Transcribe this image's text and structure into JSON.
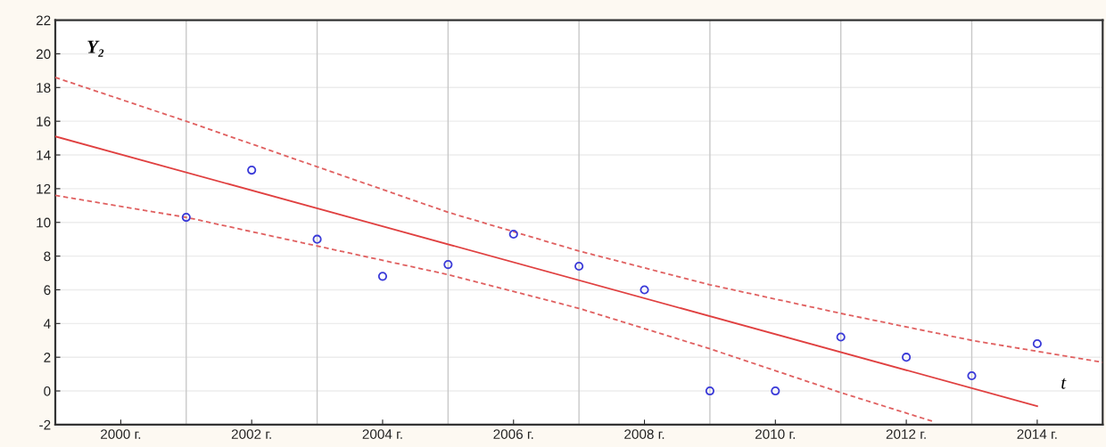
{
  "chart_data": {
    "type": "scatter",
    "xlabel": "t",
    "ylabel": "Y₂",
    "xlim": [
      1999,
      2015
    ],
    "ylim": [
      -2,
      22
    ],
    "xticks": [
      {
        "value": 2000,
        "label": "2000 г."
      },
      {
        "value": 2002,
        "label": "2002 г."
      },
      {
        "value": 2004,
        "label": "2004 г."
      },
      {
        "value": 2006,
        "label": "2006 г."
      },
      {
        "value": 2008,
        "label": "2008 г."
      },
      {
        "value": 2010,
        "label": "2010 г."
      },
      {
        "value": 2012,
        "label": "2012 г."
      },
      {
        "value": 2014,
        "label": "2014 г."
      }
    ],
    "yticks": [
      -2,
      0,
      2,
      4,
      6,
      8,
      10,
      12,
      14,
      16,
      18,
      20,
      22
    ],
    "grid": "y",
    "legend": false,
    "ref_lines": [
      {
        "axis": "x",
        "value": 2001,
        "color": "#c8c8c8"
      },
      {
        "axis": "x",
        "value": 2003,
        "color": "#c8c8c8"
      },
      {
        "axis": "x",
        "value": 2005,
        "color": "#c8c8c8"
      },
      {
        "axis": "x",
        "value": 2007,
        "color": "#c8c8c8"
      },
      {
        "axis": "x",
        "value": 2009,
        "color": "#c8c8c8"
      },
      {
        "axis": "x",
        "value": 2011,
        "color": "#c8c8c8"
      },
      {
        "axis": "x",
        "value": 2013,
        "color": "#c8c8c8"
      }
    ],
    "series": [
      {
        "marker": "circle",
        "color": "#3a3ad8",
        "x": [
          2001,
          2002,
          2003,
          2004,
          2005,
          2006,
          2007,
          2008,
          2009,
          2010,
          2011,
          2012,
          2013,
          2014
        ],
        "values": [
          10.3,
          13.1,
          9.0,
          6.8,
          7.5,
          9.3,
          7.4,
          6.0,
          0,
          0,
          3.2,
          2.0,
          0.9,
          2.8
        ]
      },
      {
        "type": "line",
        "line_style": "solid",
        "color": "#e04040",
        "x": [
          1999,
          2014
        ],
        "values": [
          15.1,
          -0.9
        ]
      },
      {
        "type": "line",
        "line_style": "dashed",
        "color": "#e06060",
        "x": [
          1999,
          2001,
          2003,
          2005,
          2007,
          2009,
          2011,
          2013,
          2015
        ],
        "values": [
          18.6,
          16.0,
          13.3,
          10.6,
          8.3,
          6.3,
          4.6,
          3.0,
          1.7
        ]
      },
      {
        "type": "line",
        "line_style": "dashed",
        "color": "#e06060",
        "x": [
          1999,
          2001,
          2003,
          2005,
          2007,
          2009,
          2011,
          2012.4
        ],
        "values": [
          11.6,
          10.3,
          8.6,
          6.9,
          4.9,
          2.5,
          -0.1,
          -1.8
        ]
      }
    ]
  }
}
